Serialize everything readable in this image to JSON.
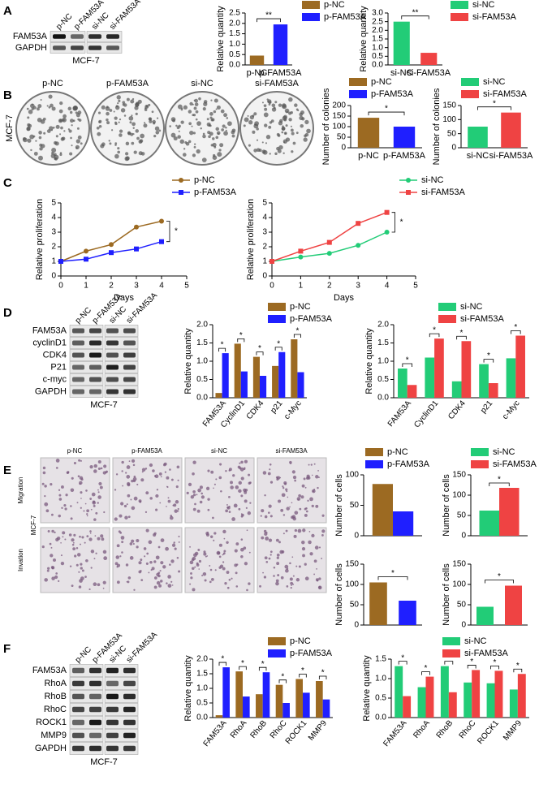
{
  "figure": {
    "panels": [
      "A",
      "B",
      "C",
      "D",
      "E",
      "F"
    ],
    "blot_a": {
      "columns": [
        "p-NC",
        "p-FAM53A",
        "si-NC",
        "si-FAM53A"
      ],
      "rows": [
        "FAM53A",
        "GAPDH"
      ],
      "caption": "MCF-7"
    },
    "colony_b": {
      "columns": [
        "p-NC",
        "p-FAM53A",
        "si-NC",
        "si-FAM53A"
      ],
      "side": "MCF-7"
    },
    "blot_d": {
      "columns": [
        "p-NC",
        "p-FAM53A",
        "si-NC",
        "si-FAM53A"
      ],
      "rows": [
        "FAM53A",
        "cyclinD1",
        "CDK4",
        "P21",
        "c-myc",
        "GAPDH"
      ],
      "caption": "MCF-7"
    },
    "images_e": {
      "columns": [
        "p-NC",
        "p-FAM53A",
        "si-NC",
        "si-FAM53A"
      ],
      "rows": [
        "Migration",
        "Invation"
      ],
      "side": "MCF-7"
    },
    "blot_f": {
      "columns": [
        "p-NC",
        "p-FAM53A",
        "si-NC",
        "si-FAM53A"
      ],
      "rows": [
        "FAM53A",
        "RhoA",
        "RhoB",
        "RhoC",
        "ROCK1",
        "MMP9",
        "GAPDH"
      ],
      "caption": "MCF-7"
    }
  },
  "chart_data": [
    {
      "type": "bar",
      "ylabel": "Relative quantity",
      "categories": [
        "p-NC",
        "p-FAM53A"
      ],
      "values": [
        0.45,
        1.95
      ],
      "colors": [
        "#9c6a22",
        "#1f1fff"
      ],
      "legend": true,
      "annotation": "**",
      "ylim": [
        0,
        2.5
      ],
      "yticks": [
        {
          "value": 0,
          "label": "0.0"
        },
        0.5,
        {
          "value": 1,
          "label": "1.0"
        },
        1.5,
        {
          "value": 2,
          "label": "2.0"
        },
        2.5
      ]
    },
    {
      "type": "bar",
      "ylabel": "Relative quantity",
      "categories": [
        "si-NC",
        "si-FAM53A"
      ],
      "values": [
        2.5,
        0.7
      ],
      "colors": [
        "#22cc77",
        "#ef4343"
      ],
      "legend": true,
      "annotation": "**",
      "ylim": [
        0,
        3
      ],
      "yticks": [
        {
          "value": 0,
          "label": "0.0"
        },
        0.5,
        {
          "value": 1,
          "label": "1.0"
        },
        1.5,
        {
          "value": 2,
          "label": "2.0"
        },
        2.5,
        {
          "value": 3,
          "label": "3.0"
        }
      ]
    },
    {
      "type": "bar",
      "ylabel": "Number of colonies",
      "categories": [
        "p-NC",
        "p-FAM53A"
      ],
      "values": [
        142,
        100
      ],
      "colors": [
        "#9c6a22",
        "#1f1fff"
      ],
      "legend": true,
      "annotation": "*",
      "ylim": [
        0,
        200
      ],
      "yticks": [
        0,
        50,
        100,
        150,
        200
      ]
    },
    {
      "type": "bar",
      "ylabel": "Number of colonies",
      "categories": [
        "si-NC",
        "si-FAM53A"
      ],
      "values": [
        75,
        125
      ],
      "colors": [
        "#22cc77",
        "#ef4343"
      ],
      "legend": true,
      "annotation": "*",
      "ylim": [
        0,
        150
      ],
      "yticks": [
        0,
        50,
        100,
        150
      ]
    },
    {
      "type": "line",
      "xlabel": "Days",
      "ylabel": "Relative proliferation",
      "x": [
        0,
        1,
        2,
        3,
        4
      ],
      "series": [
        {
          "name": "p-NC",
          "color": "#9c6a22",
          "values": [
            1,
            1.7,
            2.15,
            3.35,
            3.75
          ]
        },
        {
          "name": "p-FAM53A",
          "color": "#1f1fff",
          "values": [
            1,
            1.15,
            1.6,
            1.85,
            2.35
          ]
        }
      ],
      "annotation": "*",
      "xlim": [
        0,
        5
      ],
      "xticks": [
        0,
        1,
        2,
        3,
        4,
        5
      ],
      "ylim": [
        0,
        5
      ],
      "yticks": [
        0,
        1,
        2,
        3,
        4,
        5
      ]
    },
    {
      "type": "line",
      "xlabel": "Days",
      "ylabel": "Relative proliferation",
      "x": [
        0,
        1,
        2,
        3,
        4
      ],
      "series": [
        {
          "name": "si-NC",
          "color": "#22cc77",
          "values": [
            1,
            1.3,
            1.55,
            2.1,
            3.0
          ]
        },
        {
          "name": "si-FAM53A",
          "color": "#ef4343",
          "values": [
            1,
            1.7,
            2.3,
            3.6,
            4.35
          ]
        }
      ],
      "annotation": "*",
      "xlim": [
        0,
        5
      ],
      "xticks": [
        0,
        1,
        2,
        3,
        4,
        5
      ],
      "ylim": [
        0,
        5
      ],
      "yticks": [
        0,
        1,
        2,
        3,
        4,
        5
      ]
    },
    {
      "type": "bar",
      "ylabel": "Relative quantity",
      "categories": [
        "FAM53A",
        "CyclinD1",
        "CDK4",
        "p21",
        "c-Myc"
      ],
      "series": [
        {
          "name": "p-NC",
          "color": "#9c6a22",
          "values": [
            0.13,
            1.48,
            1.12,
            0.87,
            1.6
          ]
        },
        {
          "name": "p-FAM53A",
          "color": "#1f1fff",
          "values": [
            1.22,
            0.72,
            0.6,
            1.25,
            0.7
          ]
        }
      ],
      "annotations": [
        "*",
        "*",
        "*",
        "*",
        "*"
      ],
      "ylim": [
        0,
        2
      ],
      "yticks": [
        {
          "value": 0,
          "label": "0.0"
        },
        0.5,
        {
          "value": 1,
          "label": "1.0"
        },
        1.5,
        {
          "value": 2,
          "label": "2.0"
        }
      ]
    },
    {
      "type": "bar",
      "ylabel": "Relative quantity",
      "categories": [
        "FAM53A",
        "CyclinD1",
        "CDK4",
        "p21",
        "c-Myc"
      ],
      "series": [
        {
          "name": "si-NC",
          "color": "#22cc77",
          "values": [
            0.8,
            1.1,
            0.45,
            0.92,
            1.08
          ]
        },
        {
          "name": "si-FAM53A",
          "color": "#ef4343",
          "values": [
            0.35,
            1.62,
            1.55,
            0.4,
            1.7
          ]
        }
      ],
      "annotations": [
        "*",
        "*",
        "*",
        "*",
        "*"
      ],
      "ylim": [
        0,
        2
      ],
      "yticks": [
        {
          "value": 0,
          "label": "0.0"
        },
        0.5,
        {
          "value": 1,
          "label": "1.0"
        },
        1.5,
        {
          "value": 2,
          "label": "2.0"
        }
      ]
    },
    {
      "type": "bar",
      "ylabel": "Number of cells",
      "series": [
        {
          "name": "p-NC",
          "color": "#9c6a22",
          "values": [
            85
          ]
        },
        {
          "name": "p-FAM53A",
          "color": "#1f1fff",
          "values": [
            40
          ]
        }
      ],
      "ylim": [
        0,
        100
      ],
      "yticks": [
        0,
        50,
        100
      ]
    },
    {
      "type": "bar",
      "ylabel": "Number of cells",
      "series": [
        {
          "name": "si-NC",
          "color": "#22cc77",
          "values": [
            62
          ]
        },
        {
          "name": "si-FAM53A",
          "color": "#ef4343",
          "values": [
            118
          ]
        }
      ],
      "annotations": [
        "*"
      ],
      "ylim": [
        0,
        150
      ],
      "yticks": [
        0,
        50,
        100,
        150
      ]
    },
    {
      "type": "bar",
      "ylabel": "Number of cells",
      "values": [
        105,
        60
      ],
      "colors": [
        "#9c6a22",
        "#1f1fff"
      ],
      "annotation": "*",
      "ylim": [
        0,
        150
      ],
      "yticks": [
        0,
        50,
        100,
        150
      ]
    },
    {
      "type": "bar",
      "ylabel": "Number of cells",
      "values": [
        45,
        97
      ],
      "colors": [
        "#22cc77",
        "#ef4343"
      ],
      "annotation": "*",
      "ylim": [
        0,
        150
      ],
      "yticks": [
        0,
        50,
        100,
        150
      ]
    },
    {
      "type": "bar",
      "ylabel": "Relative quantity",
      "categories": [
        "FAM53A",
        "RhoA",
        "RhoB",
        "RhoC",
        "ROCK1",
        "MMP9"
      ],
      "series": [
        {
          "name": "p-NC",
          "color": "#9c6a22",
          "values": [
            0.08,
            1.58,
            0.8,
            1.12,
            1.32,
            1.25
          ]
        },
        {
          "name": "p-FAM53A",
          "color": "#1f1fff",
          "values": [
            1.72,
            0.72,
            1.55,
            0.5,
            0.85,
            0.62
          ]
        }
      ],
      "annotations": [
        "*",
        "*",
        "*",
        "*",
        "*",
        "*"
      ],
      "ylim": [
        0,
        2
      ],
      "yticks": [
        {
          "value": 0,
          "label": "0.0"
        },
        0.5,
        {
          "value": 1,
          "label": "1.0"
        },
        1.5,
        {
          "value": 2,
          "label": "2.0"
        }
      ]
    },
    {
      "type": "bar",
      "ylabel": "Relative quantity",
      "categories": [
        "FAM53A",
        "RhoA",
        "RhoB",
        "RhoC",
        "ROCK1",
        "MMP9"
      ],
      "series": [
        {
          "name": "si-NC",
          "color": "#22cc77",
          "values": [
            1.32,
            0.78,
            1.32,
            0.9,
            0.88,
            0.72
          ]
        },
        {
          "name": "si-FAM53A",
          "color": "#ef4343",
          "values": [
            0.55,
            1.05,
            0.65,
            1.22,
            1.2,
            1.12
          ]
        }
      ],
      "annotations": [
        "*",
        "*",
        "*",
        "*",
        "*",
        "*"
      ],
      "ylim": [
        0,
        1.5
      ],
      "yticks": [
        {
          "value": 0,
          "label": "0.0"
        },
        0.5,
        {
          "value": 1,
          "label": "1.0"
        },
        1.5
      ]
    }
  ]
}
